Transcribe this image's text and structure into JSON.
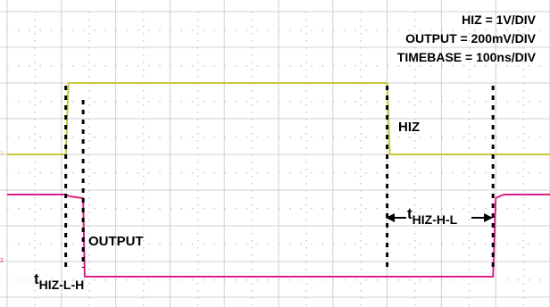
{
  "chart_data": {
    "type": "line",
    "settings": [
      "HIZ = 1V/DIV",
      "OUTPUT = 200mV/DIV",
      "TIMEBASE = 100ns/DIV"
    ],
    "time_unit": "ns",
    "time_range": [
      0,
      1000
    ],
    "series": [
      {
        "name": "HIZ",
        "color": "#c8c83c",
        "unit": "V",
        "volts_per_div": 1,
        "channel_marker": "1",
        "x": [
          0,
          108,
          113,
          700,
          705,
          1000
        ],
        "y": [
          0,
          0,
          2.0,
          2.0,
          0,
          0
        ]
      },
      {
        "name": "OUTPUT",
        "color": "#e0208a",
        "unit": "V",
        "volts_per_div": 0.2,
        "channel_marker": "2",
        "x": [
          0,
          108,
          115,
          140,
          143,
          895,
          900,
          915,
          1000
        ],
        "y": [
          0.2,
          0.2,
          0.19,
          0.18,
          -0.26,
          -0.26,
          0.18,
          0.2,
          0.2
        ]
      }
    ],
    "annotations": {
      "hiz_label": "HIZ",
      "output_label": "OUTPUT",
      "t_lh_main": "t",
      "t_lh_sub": "HIZ-L-H",
      "t_hl_main": "t",
      "t_hl_sub": "HIZ-H-L"
    },
    "grid": true,
    "colors": {
      "background": "#ffffff",
      "grid": "#d0d0d0",
      "markers": "#000000"
    }
  }
}
